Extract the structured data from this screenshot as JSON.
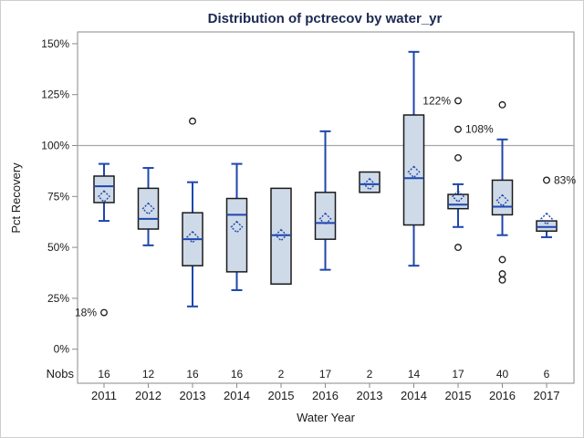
{
  "figure": {
    "colors": {
      "box_fill": "#cfdae9",
      "box_stroke": "#1a1a1a",
      "blue": "#1e46ad",
      "outlier_stroke": "#1a1a1a",
      "ref_line": "#a8a8a8",
      "frame": "#8a8a8a",
      "tick": "#8a8a8a",
      "title_color": "#1c2951",
      "text": "#1a1a1a"
    }
  },
  "chart_data": {
    "type": "box",
    "title": "Distribution of pctrecov by water_yr",
    "xlabel": "Water Year",
    "ylabel": "Pct Recovery",
    "nobs_row_label": "Nobs",
    "grid": false,
    "ylim": [
      0,
      155
    ],
    "reference_line": 100,
    "yticks": {
      "values": [
        0,
        25,
        50,
        75,
        100,
        125,
        150
      ],
      "labels": [
        "0%",
        "25%",
        "50%",
        "75%",
        "100%",
        "125%",
        "150%"
      ]
    },
    "categories": [
      "2011",
      "2012",
      "2013",
      "2014",
      "2015",
      "2016",
      "2013",
      "2014",
      "2015",
      "2016",
      "2017"
    ],
    "nobs": [
      16,
      12,
      16,
      16,
      2,
      17,
      2,
      14,
      17,
      40,
      6
    ],
    "groups": [
      {
        "year": "2011",
        "nobs": 16,
        "low": 63,
        "q1": 72,
        "median": 80,
        "q3": 85,
        "high": 91,
        "mean": 75,
        "outliers": [
          {
            "value": 18,
            "label": "18%",
            "side": "left"
          }
        ]
      },
      {
        "year": "2012",
        "nobs": 12,
        "low": 51,
        "q1": 59,
        "median": 64,
        "q3": 79,
        "high": 89,
        "mean": 69,
        "outliers": []
      },
      {
        "year": "2013",
        "nobs": 16,
        "low": 21,
        "q1": 41,
        "median": 54,
        "q3": 67,
        "high": 82,
        "mean": 55,
        "outliers": [
          {
            "value": 112
          }
        ]
      },
      {
        "year": "2014",
        "nobs": 16,
        "low": 29,
        "q1": 38,
        "median": 66,
        "q3": 74,
        "high": 91,
        "mean": 60,
        "outliers": []
      },
      {
        "year": "2015",
        "nobs": 2,
        "low": 32,
        "q1": 32,
        "median": 56,
        "q3": 79,
        "high": 79,
        "mean": 56,
        "outliers": []
      },
      {
        "year": "2016",
        "nobs": 17,
        "low": 39,
        "q1": 54,
        "median": 62,
        "q3": 77,
        "high": 107,
        "mean": 64,
        "outliers": []
      },
      {
        "year": "2013",
        "nobs": 2,
        "low": 77,
        "q1": 77,
        "median": 81,
        "q3": 87,
        "high": 87,
        "mean": 81,
        "outliers": []
      },
      {
        "year": "2014",
        "nobs": 14,
        "low": 41,
        "q1": 61,
        "median": 84,
        "q3": 115,
        "high": 146,
        "mean": 87,
        "outliers": []
      },
      {
        "year": "2015",
        "nobs": 17,
        "low": 60,
        "q1": 69,
        "median": 71,
        "q3": 76,
        "high": 81,
        "mean": 75,
        "outliers": [
          {
            "value": 122,
            "label": "122%",
            "side": "left"
          },
          {
            "value": 108,
            "label": "108%",
            "side": "right"
          },
          {
            "value": 94
          },
          {
            "value": 50
          }
        ]
      },
      {
        "year": "2016",
        "nobs": 40,
        "low": 56,
        "q1": 66,
        "median": 70,
        "q3": 83,
        "high": 103,
        "mean": 73,
        "outliers": [
          {
            "value": 120
          },
          {
            "value": 44
          },
          {
            "value": 37
          },
          {
            "value": 34
          }
        ]
      },
      {
        "year": "2017",
        "nobs": 6,
        "low": 55,
        "q1": 58,
        "median": 60,
        "q3": 63,
        "high": 63,
        "mean": 64,
        "outliers": [
          {
            "value": 83,
            "label": "83%",
            "side": "right"
          }
        ]
      }
    ]
  }
}
